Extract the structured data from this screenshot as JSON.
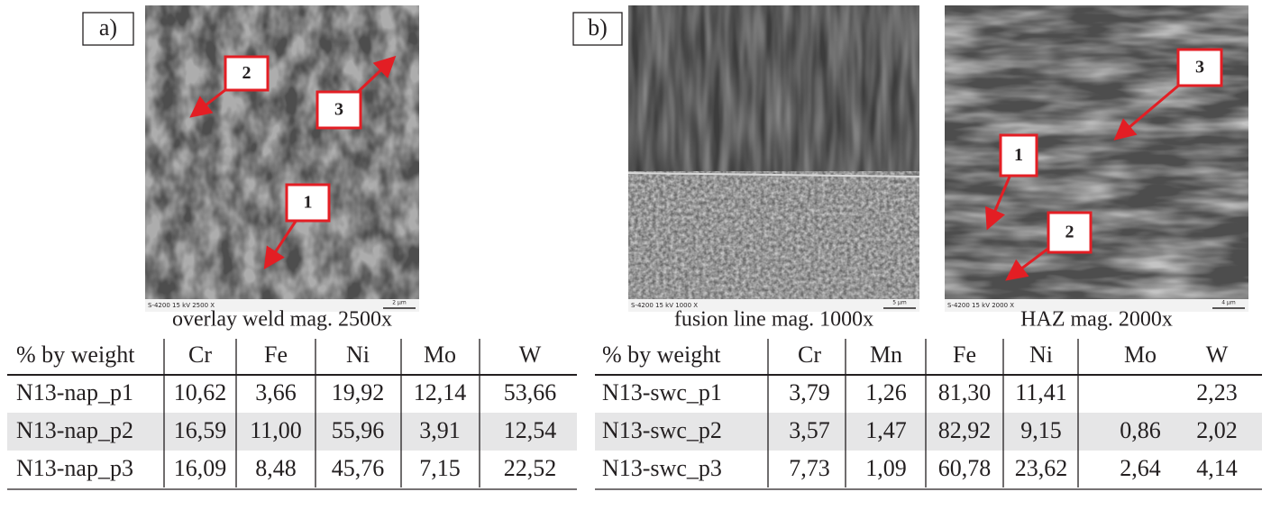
{
  "panels": [
    {
      "label": "a)",
      "images": [
        {
          "caption": "overlay weld mag. 2500x",
          "info": "S-4200 15 kV 2500 X",
          "scale": "2 µm",
          "markers": [
            "1",
            "2",
            "3"
          ]
        }
      ]
    },
    {
      "label": "b)",
      "images": [
        {
          "caption": "fusion line mag. 1000x",
          "info": "S-4200 15 kV 1000 X",
          "scale": "5 µm",
          "markers": []
        },
        {
          "caption": "HAZ mag. 2000x",
          "info": "S-4200 15 kV 2000 X",
          "scale": "4 µm",
          "markers": [
            "1",
            "2",
            "3"
          ]
        }
      ]
    }
  ],
  "tables": [
    {
      "columns": [
        "% by weight",
        "Cr",
        "Fe",
        "Ni",
        "Mo",
        "W"
      ],
      "rows": [
        [
          "N13-nap_p1",
          "10,62",
          "3,66",
          "19,92",
          "12,14",
          "53,66"
        ],
        [
          "N13-nap_p2",
          "16,59",
          "11,00",
          "55,96",
          "3,91",
          "12,54"
        ],
        [
          "N13-nap_p3",
          "16,09",
          "8,48",
          "45,76",
          "7,15",
          "22,52"
        ]
      ]
    },
    {
      "columns": [
        "% by weight",
        "Cr",
        "Mn",
        "Fe",
        "Ni",
        "Mo",
        "W"
      ],
      "rows": [
        [
          "N13-swc_p1",
          "3,79",
          "1,26",
          "81,30",
          "11,41",
          null,
          "2,23"
        ],
        [
          "N13-swc_p2",
          "3,57",
          "1,47",
          "82,92",
          "9,15",
          "0,86",
          "2,02"
        ],
        [
          "N13-swc_p3",
          "7,73",
          "1,09",
          "60,78",
          "23,62",
          "2,64",
          "4,14"
        ]
      ]
    }
  ]
}
